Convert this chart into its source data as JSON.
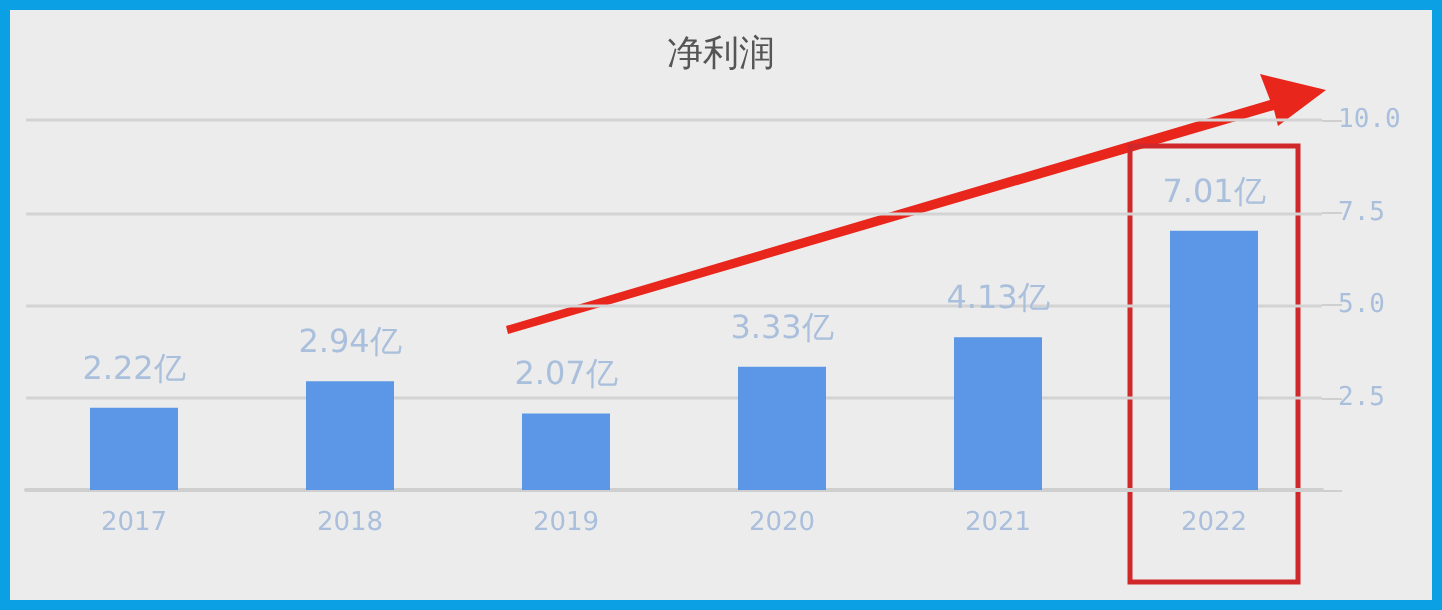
{
  "chart_data": {
    "type": "bar",
    "title": "净利润",
    "categories": [
      "2017",
      "2018",
      "2019",
      "2020",
      "2021",
      "2022"
    ],
    "values": [
      2.22,
      2.94,
      2.07,
      3.33,
      4.13,
      7.01
    ],
    "value_labels": [
      "2.22亿",
      "2.94亿",
      "2.07亿",
      "3.33亿",
      "4.13亿",
      "7.01亿"
    ],
    "color": "#5b97e6",
    "ylim": [
      0,
      10
    ],
    "yticks": [
      {
        "value": 0,
        "label": null
      },
      {
        "value": 2.5,
        "label": "2.5"
      },
      {
        "value": 5,
        "label": "5.0"
      },
      {
        "value": 7.5,
        "label": "7.5"
      },
      {
        "value": 10,
        "label": "10.0"
      }
    ],
    "grid": "y"
  }
}
